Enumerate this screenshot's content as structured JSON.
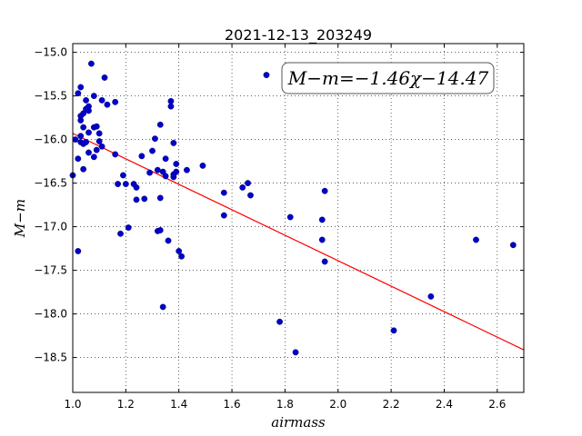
{
  "chart_data": {
    "type": "scatter",
    "title": "2021-12-13_203249",
    "xlabel": "airmass",
    "ylabel": "M−m",
    "xlim": [
      1.0,
      2.7
    ],
    "ylim": [
      -18.9,
      -14.9
    ],
    "y_inverted": true,
    "grid": true,
    "xticks": [
      "1.0",
      "1.2",
      "1.4",
      "1.6",
      "1.8",
      "2.0",
      "2.2",
      "2.4",
      "2.6"
    ],
    "yticks": [
      "−15.0",
      "−15.5",
      "−16.0",
      "−16.5",
      "−17.0",
      "−17.5",
      "−18.0",
      "−18.5"
    ],
    "annotation": "M−m=−1.46χ−14.47",
    "fit": {
      "slope": -1.46,
      "intercept": -14.47,
      "color": "#ff0000"
    },
    "marker_color": "#0000cc",
    "points": [
      [
        1.01,
        -16.0
      ],
      [
        1.02,
        -15.47
      ],
      [
        1.03,
        -15.4
      ],
      [
        1.03,
        -15.78
      ],
      [
        1.03,
        -15.73
      ],
      [
        1.03,
        -15.96
      ],
      [
        1.03,
        -16.03
      ],
      [
        1.04,
        -15.86
      ],
      [
        1.04,
        -16.05
      ],
      [
        1.04,
        -15.7
      ],
      [
        1.05,
        -15.65
      ],
      [
        1.05,
        -16.03
      ],
      [
        1.05,
        -15.55
      ],
      [
        1.06,
        -15.67
      ],
      [
        1.06,
        -15.92
      ],
      [
        1.06,
        -15.62
      ],
      [
        1.07,
        -15.13
      ],
      [
        1.08,
        -15.5
      ],
      [
        1.08,
        -15.86
      ],
      [
        1.09,
        -15.85
      ],
      [
        1.09,
        -16.12
      ],
      [
        1.1,
        -16.02
      ],
      [
        1.1,
        -15.93
      ],
      [
        1.11,
        -16.08
      ],
      [
        1.11,
        -15.55
      ],
      [
        1.12,
        -15.29
      ],
      [
        1.13,
        -15.6
      ],
      [
        1.16,
        -15.57
      ],
      [
        1.16,
        -16.17
      ],
      [
        1.0,
        -16.41
      ],
      [
        1.02,
        -16.22
      ],
      [
        1.04,
        -16.34
      ],
      [
        1.06,
        -16.15
      ],
      [
        1.08,
        -16.2
      ],
      [
        1.02,
        -17.28
      ],
      [
        1.17,
        -16.51
      ],
      [
        1.18,
        -17.08
      ],
      [
        1.19,
        -16.41
      ],
      [
        1.2,
        -16.51
      ],
      [
        1.21,
        -17.01
      ],
      [
        1.23,
        -16.51
      ],
      [
        1.24,
        -16.69
      ],
      [
        1.24,
        -16.55
      ],
      [
        1.26,
        -16.19
      ],
      [
        1.27,
        -16.68
      ],
      [
        1.29,
        -16.38
      ],
      [
        1.3,
        -16.13
      ],
      [
        1.31,
        -15.99
      ],
      [
        1.32,
        -17.05
      ],
      [
        1.32,
        -16.35
      ],
      [
        1.33,
        -15.83
      ],
      [
        1.33,
        -16.67
      ],
      [
        1.33,
        -17.04
      ],
      [
        1.34,
        -16.37
      ],
      [
        1.34,
        -17.92
      ],
      [
        1.35,
        -16.42
      ],
      [
        1.35,
        -16.22
      ],
      [
        1.36,
        -17.16
      ],
      [
        1.37,
        -15.56
      ],
      [
        1.37,
        -15.62
      ],
      [
        1.38,
        -16.04
      ],
      [
        1.38,
        -16.43
      ],
      [
        1.38,
        -16.4
      ],
      [
        1.39,
        -16.37
      ],
      [
        1.39,
        -16.28
      ],
      [
        1.4,
        -17.28
      ],
      [
        1.41,
        -17.34
      ],
      [
        1.43,
        -16.35
      ],
      [
        1.49,
        -16.3
      ],
      [
        1.57,
        -16.61
      ],
      [
        1.57,
        -16.87
      ],
      [
        1.64,
        -16.55
      ],
      [
        1.66,
        -16.5
      ],
      [
        1.67,
        -16.64
      ],
      [
        1.73,
        -15.26
      ],
      [
        1.78,
        -18.09
      ],
      [
        1.82,
        -16.89
      ],
      [
        1.84,
        -18.44
      ],
      [
        1.94,
        -16.92
      ],
      [
        1.94,
        -17.15
      ],
      [
        1.95,
        -16.59
      ],
      [
        1.95,
        -17.4
      ],
      [
        2.21,
        -18.19
      ],
      [
        2.35,
        -17.8
      ],
      [
        2.52,
        -17.15
      ],
      [
        2.66,
        -17.21
      ]
    ]
  }
}
